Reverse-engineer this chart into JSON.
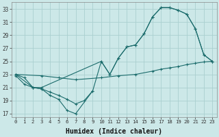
{
  "xlabel": "Humidex (Indice chaleur)",
  "bg_color": "#cce8e8",
  "grid_color": "#aacfcf",
  "line_color": "#1a6b6b",
  "xlim": [
    -0.5,
    23.5
  ],
  "ylim": [
    16.5,
    34
  ],
  "yticks": [
    17,
    19,
    21,
    23,
    25,
    27,
    29,
    31,
    33
  ],
  "xticks": [
    0,
    1,
    2,
    3,
    4,
    5,
    6,
    7,
    8,
    9,
    10,
    11,
    12,
    13,
    14,
    15,
    16,
    17,
    18,
    19,
    20,
    21,
    22,
    23
  ],
  "line1_x": [
    0,
    2,
    3,
    10,
    11,
    12,
    13,
    14,
    15,
    16,
    17,
    18,
    19,
    20,
    21,
    22,
    23
  ],
  "line1_y": [
    23,
    21,
    21,
    25,
    23,
    25.5,
    27.2,
    27.5,
    29.2,
    31.8,
    33.2,
    33.2,
    32.8,
    32.2,
    30.0,
    26.0,
    25.0
  ],
  "line2_x": [
    0,
    1,
    2,
    3,
    4,
    5,
    6,
    7,
    8,
    9,
    10,
    11,
    12,
    13,
    14,
    15,
    16,
    17,
    18,
    19,
    20,
    21,
    22,
    23
  ],
  "line2_y": [
    23,
    22.5,
    21,
    20.8,
    20.3,
    19.8,
    19.2,
    18.5,
    19.0,
    20.5,
    25.0,
    23.0,
    25.5,
    27.2,
    27.5,
    29.2,
    31.8,
    33.2,
    33.2,
    32.8,
    32.2,
    30.0,
    26.0,
    25.0
  ],
  "line3_x": [
    0,
    1,
    2,
    3,
    4,
    5,
    6,
    7,
    9
  ],
  "line3_y": [
    22.8,
    21.5,
    21.0,
    20.8,
    19.8,
    19.2,
    17.5,
    17.0,
    20.5
  ],
  "line4_x": [
    0,
    3,
    5,
    7,
    10,
    12,
    14,
    16,
    17,
    18,
    19,
    20,
    21,
    22,
    23
  ],
  "line4_y": [
    23,
    22.8,
    22.5,
    22.2,
    22.5,
    22.8,
    23.0,
    23.5,
    23.8,
    24.0,
    24.2,
    24.5,
    24.7,
    24.9,
    25.0
  ]
}
